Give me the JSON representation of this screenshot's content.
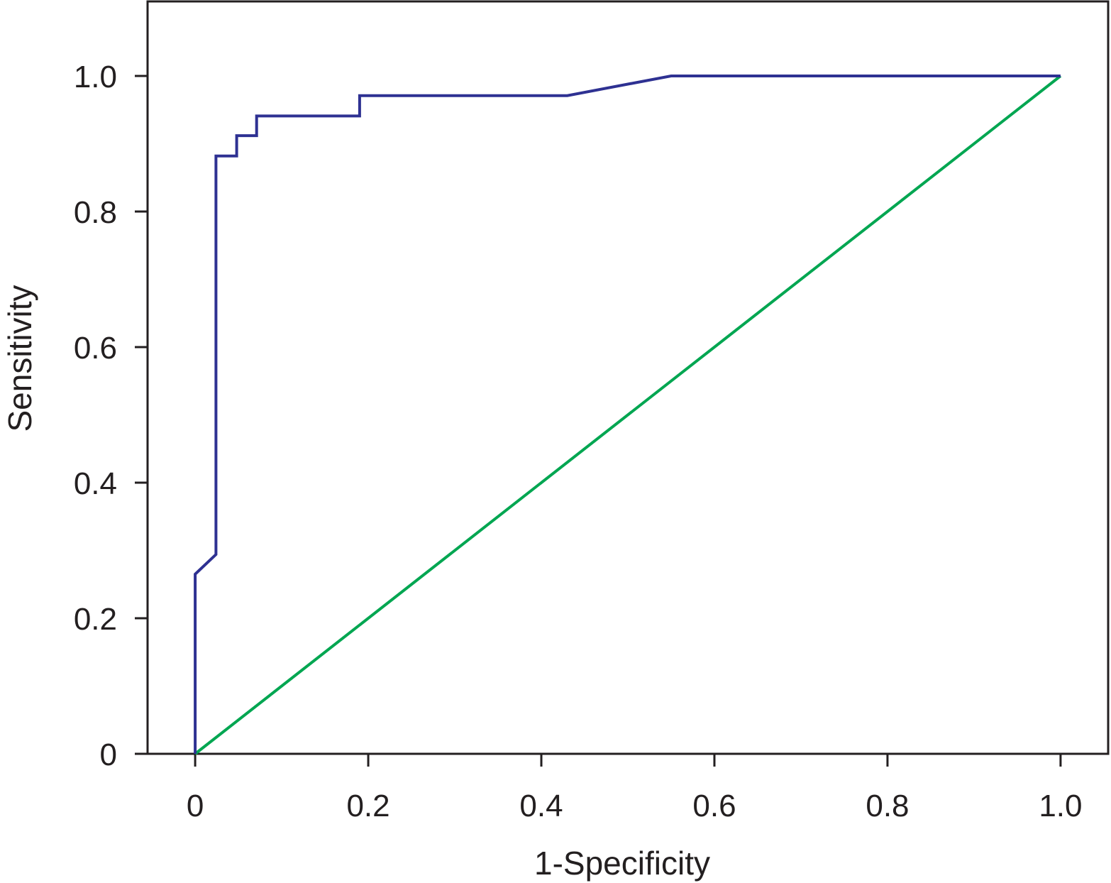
{
  "chart_data": {
    "type": "line",
    "title": "",
    "xlabel": "1-Specificity",
    "ylabel": "Sensitivity",
    "xlim": [
      -0.055,
      1.055
    ],
    "ylim": [
      0,
      1.11
    ],
    "x_ticks": [
      "0",
      "0.2",
      "0.4",
      "0.6",
      "0.8",
      "1.0"
    ],
    "y_ticks": [
      "0",
      "0.2",
      "0.4",
      "0.6",
      "0.8",
      "1.0"
    ],
    "grid": false,
    "legend": "none",
    "series": [
      {
        "color": "#2e3192",
        "x": [
          0,
          0,
          0.024,
          0.024,
          0.048,
          0.048,
          0.071,
          0.071,
          0.19,
          0.19,
          0.43,
          0.55,
          1.0
        ],
        "y": [
          0,
          0.265,
          0.294,
          0.882,
          0.882,
          0.912,
          0.912,
          0.941,
          0.941,
          0.971,
          0.971,
          1.0,
          1.0
        ]
      },
      {
        "color": "#00a651",
        "x": [
          0,
          1.0
        ],
        "y": [
          0,
          1.0
        ]
      }
    ]
  }
}
